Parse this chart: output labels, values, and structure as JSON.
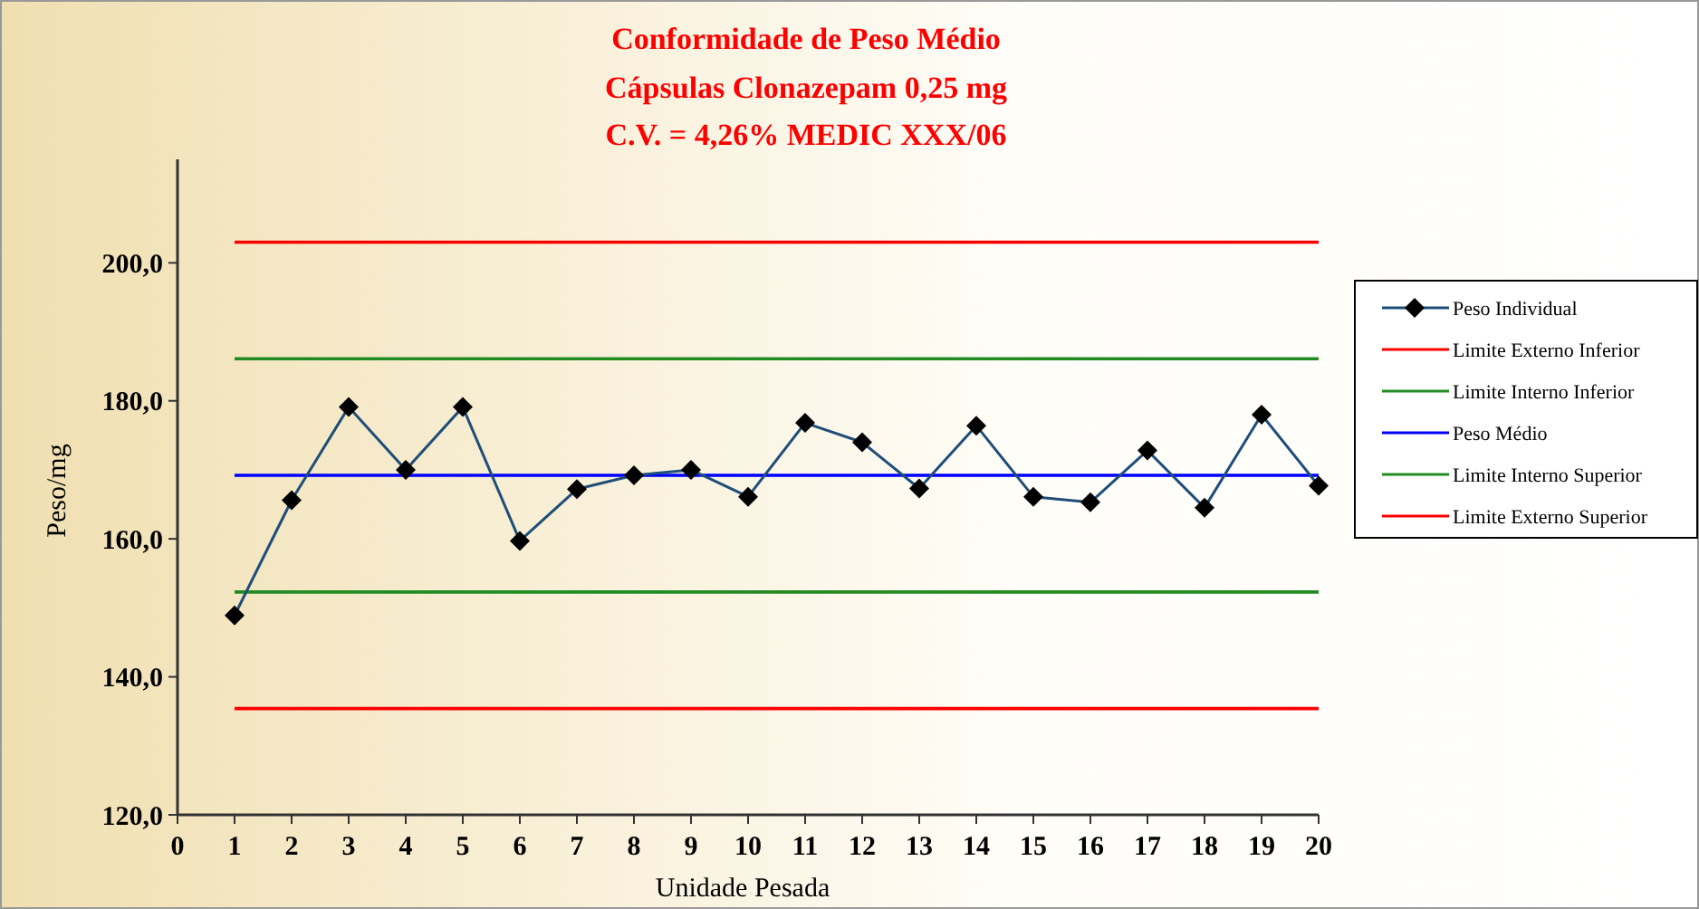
{
  "chart_data": {
    "type": "line",
    "title": "Conformidade de Peso Médio",
    "subtitle": "Cápsulas Clonazepam 0,25 mg",
    "annotations": [
      "C.V. = 4,26% MEDIC XXX/06"
    ],
    "xlabel": "Unidade Pesada",
    "ylabel": "Peso/mg",
    "x": [
      1,
      2,
      3,
      4,
      5,
      6,
      7,
      8,
      9,
      10,
      11,
      12,
      13,
      14,
      15,
      16,
      17,
      18,
      19,
      20
    ],
    "series": [
      {
        "name": "Peso Individual",
        "color": "#1f4e79",
        "marker": "diamond",
        "values": [
          148.9,
          165.6,
          179.1,
          170.0,
          179.1,
          159.7,
          167.2,
          169.2,
          170.0,
          166.1,
          176.8,
          174.0,
          167.3,
          176.4,
          166.1,
          165.3,
          172.8,
          164.5,
          178.0,
          167.7
        ]
      },
      {
        "name": "Limite Externo Inferior",
        "color": "#ff0000",
        "marker": "none",
        "values": [
          135.4,
          135.4,
          135.4,
          135.4,
          135.4,
          135.4,
          135.4,
          135.4,
          135.4,
          135.4,
          135.4,
          135.4,
          135.4,
          135.4,
          135.4,
          135.4,
          135.4,
          135.4,
          135.4,
          135.4
        ]
      },
      {
        "name": "Limite Interno Inferior",
        "color": "#228b22",
        "marker": "none",
        "values": [
          152.3,
          152.3,
          152.3,
          152.3,
          152.3,
          152.3,
          152.3,
          152.3,
          152.3,
          152.3,
          152.3,
          152.3,
          152.3,
          152.3,
          152.3,
          152.3,
          152.3,
          152.3,
          152.3,
          152.3
        ]
      },
      {
        "name": "Peso Médio",
        "color": "#0000ff",
        "marker": "none",
        "values": [
          169.2,
          169.2,
          169.2,
          169.2,
          169.2,
          169.2,
          169.2,
          169.2,
          169.2,
          169.2,
          169.2,
          169.2,
          169.2,
          169.2,
          169.2,
          169.2,
          169.2,
          169.2,
          169.2,
          169.2
        ]
      },
      {
        "name": "Limite Interno Superior",
        "color": "#228b22",
        "marker": "none",
        "values": [
          186.1,
          186.1,
          186.1,
          186.1,
          186.1,
          186.1,
          186.1,
          186.1,
          186.1,
          186.1,
          186.1,
          186.1,
          186.1,
          186.1,
          186.1,
          186.1,
          186.1,
          186.1,
          186.1,
          186.1
        ]
      },
      {
        "name": "Limite Externo Superior",
        "color": "#ff0000",
        "marker": "none",
        "values": [
          203.0,
          203.0,
          203.0,
          203.0,
          203.0,
          203.0,
          203.0,
          203.0,
          203.0,
          203.0,
          203.0,
          203.0,
          203.0,
          203.0,
          203.0,
          203.0,
          203.0,
          203.0,
          203.0,
          203.0
        ]
      }
    ],
    "xlim": [
      0,
      20
    ],
    "xticks": [
      0,
      1,
      2,
      3,
      4,
      5,
      6,
      7,
      8,
      9,
      10,
      11,
      12,
      13,
      14,
      15,
      16,
      17,
      18,
      19,
      20
    ],
    "ylim": [
      120,
      215
    ],
    "yticks": [
      {
        "value": 120,
        "label": "120,0"
      },
      {
        "value": 140,
        "label": "140,0"
      },
      {
        "value": 160,
        "label": "160,0"
      },
      {
        "value": 180,
        "label": "180,0"
      },
      {
        "value": 200,
        "label": "200,0"
      }
    ],
    "grid": false,
    "legend": "right",
    "line_style": "solid"
  }
}
